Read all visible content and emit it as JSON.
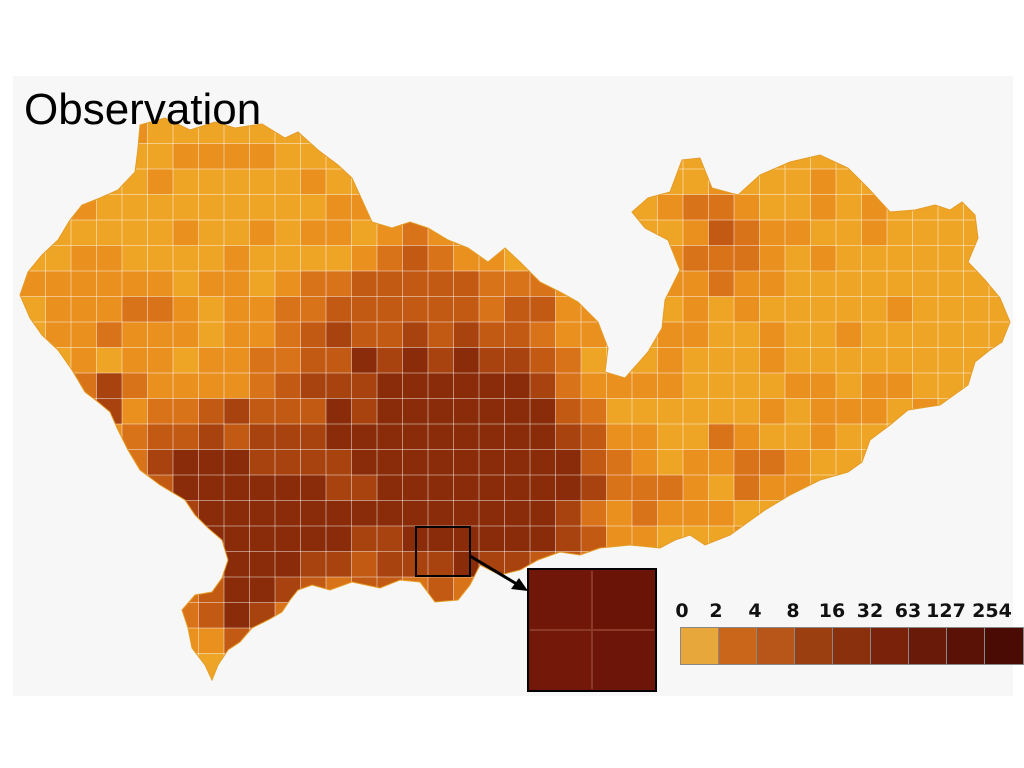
{
  "title": "Observation",
  "legend": {
    "labels": [
      "0",
      "2",
      "4",
      "8",
      "16",
      "32",
      "63",
      "127",
      "254"
    ],
    "colors": [
      "#e8a73a",
      "#c9661a",
      "#b8561a",
      "#9c3f10",
      "#8a300c",
      "#7a230a",
      "#6a1a08",
      "#5a1206",
      "#4a0b05"
    ]
  },
  "map_colors": {
    "background": "#f7f7f8",
    "base": "#eea526",
    "light": "#e9901f",
    "medium": "#d9731a",
    "dark": "#c35a14",
    "darker": "#a8420e",
    "darkest": "#8a2c0a",
    "grid": "rgba(255,255,255,0.45)"
  }
}
